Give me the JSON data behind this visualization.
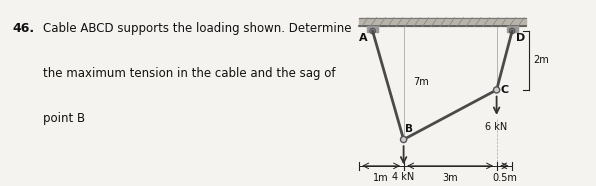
{
  "bg_color": "#f0eeea",
  "cable_color": "#4a4a4a",
  "structure_color": "#333333",
  "text_color": "#111111",
  "dim_color": "#222222",
  "hatch_color": "#999999",
  "ceiling_fill": "#b8b4aa",
  "A": [
    0.0,
    0.0
  ],
  "B": [
    1.0,
    -3.5
  ],
  "C": [
    4.0,
    -1.9
  ],
  "D": [
    4.5,
    0.0
  ],
  "ceiling_y": 0.15,
  "ceiling_thickness": 0.28,
  "xlim": [
    -0.5,
    5.3
  ],
  "ylim": [
    -5.0,
    1.0
  ],
  "load_B_kN": "4 kN",
  "load_C_kN": "6 kN",
  "dim_7m": "7m",
  "dim_2m": "2m",
  "dim_1m": "1m",
  "dim_3m": "3m",
  "dim_05m": "0.5m",
  "label_A": "A",
  "label_B": "B",
  "label_C": "C",
  "label_D": "D",
  "title_num": "46.",
  "title_line1": "Cable ABCD supports the loading shown. Determine",
  "title_line2": "the maximum tension in the cable and the sag of",
  "title_line3": "point B"
}
